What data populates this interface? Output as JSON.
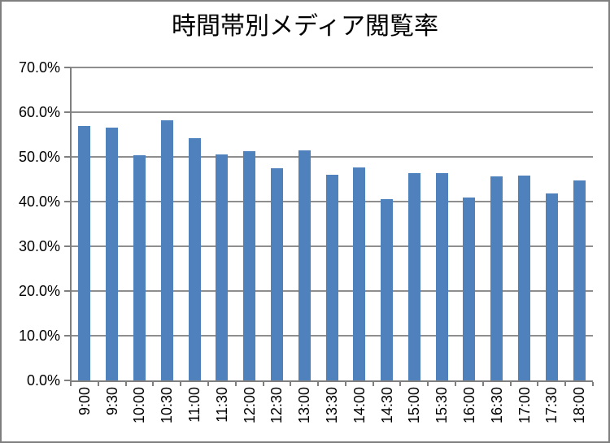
{
  "title": "時間帯別メディア閲覧率",
  "colors": {
    "bar": "#4F81BD",
    "gridline": "#8E8E8E",
    "axis": "#7F7F7F",
    "text": "#000000",
    "frame_border": "#7F7F7F",
    "background": "#FFFFFF"
  },
  "chart_data": {
    "type": "bar",
    "title": "時間帯別メディア閲覧率",
    "categories": [
      "9:00",
      "9:30",
      "10:00",
      "10:30",
      "11:00",
      "11:30",
      "12:00",
      "12:30",
      "13:00",
      "13:30",
      "14:00",
      "14:30",
      "15:00",
      "15:30",
      "16:00",
      "16:30",
      "17:00",
      "17:30",
      "18:00"
    ],
    "values": [
      57.0,
      56.5,
      50.3,
      58.1,
      54.1,
      50.5,
      51.3,
      47.5,
      51.5,
      46.0,
      47.7,
      40.5,
      46.4,
      46.4,
      40.9,
      45.7,
      45.9,
      41.8,
      44.7
    ],
    "value_unit": "%",
    "xlabel": "",
    "ylabel": "",
    "ylim": [
      0,
      70
    ],
    "y_tick_values": [
      0,
      10,
      20,
      30,
      40,
      50,
      60,
      70
    ],
    "y_tick_labels": [
      "0.0%",
      "10.0%",
      "20.0%",
      "30.0%",
      "40.0%",
      "50.0%",
      "60.0%",
      "70.0%"
    ],
    "x_tick_rotation": -90,
    "grid": true,
    "legend": false
  }
}
